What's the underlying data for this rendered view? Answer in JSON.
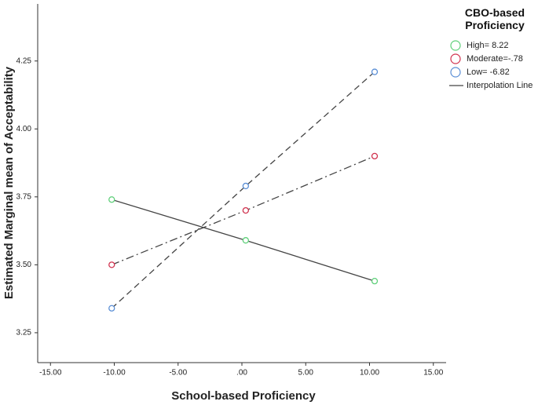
{
  "chart_data": {
    "type": "line",
    "x_label": "School-based Proficiency",
    "y_label": "Estimated Marginal mean of Acceptability",
    "legend_title": "CBO-based Proficiency",
    "legend_position": "right",
    "interpolation_label": "Interpolation Line",
    "line_color": "#444444",
    "x": [
      -10.2,
      0.3,
      10.4
    ],
    "series": [
      {
        "name": "High= 8.22",
        "color": "#5fd07a",
        "dash": "solid",
        "values": [
          3.74,
          3.59,
          3.44
        ]
      },
      {
        "name": "Moderate=-.78",
        "color": "#d1334f",
        "dash": "dashdot",
        "values": [
          3.5,
          3.7,
          3.9
        ]
      },
      {
        "name": "Low= -6.82",
        "color": "#5b8fd6",
        "dash": "dashed",
        "values": [
          3.34,
          3.79,
          4.21
        ]
      }
    ],
    "xlim": [
      -16,
      16
    ],
    "xticks": [
      {
        "value": -15,
        "label": "-15.00"
      },
      {
        "value": -10,
        "label": "-10.00"
      },
      {
        "value": -5,
        "label": "-5.00"
      },
      {
        "value": 0,
        "label": ".00"
      },
      {
        "value": 5,
        "label": "5.00"
      },
      {
        "value": 10,
        "label": "10.00"
      },
      {
        "value": 15,
        "label": "15.00"
      }
    ],
    "ylim": [
      3.14,
      4.46
    ],
    "yticks": [
      {
        "value": 3.25,
        "label": "3.25"
      },
      {
        "value": 3.5,
        "label": "3.50"
      },
      {
        "value": 3.75,
        "label": "3.75"
      },
      {
        "value": 4.0,
        "label": "4.00"
      },
      {
        "value": 4.25,
        "label": "4.25"
      }
    ]
  }
}
